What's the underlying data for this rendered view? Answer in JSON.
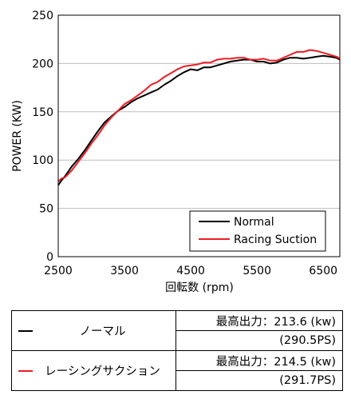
{
  "chart_data": {
    "type": "line",
    "xlabel": "回転数 (rpm)",
    "ylabel": "POWER (KW)",
    "xlim": [
      2500,
      6750
    ],
    "ylim": [
      0,
      250
    ],
    "x_ticks": [
      2500,
      3500,
      4500,
      5500,
      6500
    ],
    "y_ticks": [
      0,
      50,
      100,
      150,
      200,
      250
    ],
    "grid": "horizontal",
    "legend_position": "bottom-right",
    "series": [
      {
        "name": "Normal",
        "color": "#000000",
        "x": [
          2500,
          2550,
          2600,
          2700,
          2800,
          2900,
          3000,
          3100,
          3200,
          3300,
          3400,
          3500,
          3600,
          3700,
          3800,
          3900,
          4000,
          4100,
          4200,
          4300,
          4400,
          4500,
          4600,
          4700,
          4800,
          4900,
          5000,
          5100,
          5200,
          5300,
          5400,
          5500,
          5600,
          5700,
          5800,
          5900,
          6000,
          6100,
          6200,
          6300,
          6400,
          6500,
          6600,
          6700,
          6750
        ],
        "values": [
          74,
          79,
          83,
          93,
          101,
          110,
          120,
          130,
          139,
          145,
          151,
          155,
          160,
          164,
          167,
          170,
          173,
          178,
          182,
          187,
          191,
          194,
          193,
          196,
          196,
          198,
          200,
          202,
          203,
          204,
          204,
          202,
          202,
          200,
          201,
          204,
          206,
          206,
          205,
          206,
          207,
          208,
          207,
          206,
          204
        ]
      },
      {
        "name": "Racing Suction",
        "color": "#ee1c25",
        "x": [
          2500,
          2550,
          2600,
          2700,
          2800,
          2900,
          3000,
          3100,
          3200,
          3300,
          3400,
          3500,
          3600,
          3700,
          3800,
          3900,
          4000,
          4100,
          4200,
          4300,
          4400,
          4500,
          4600,
          4700,
          4800,
          4900,
          5000,
          5100,
          5200,
          5300,
          5400,
          5500,
          5600,
          5700,
          5800,
          5900,
          6000,
          6100,
          6200,
          6300,
          6400,
          6500,
          6600,
          6700,
          6750
        ],
        "values": [
          78,
          81,
          82,
          89,
          98,
          107,
          117,
          126,
          136,
          144,
          151,
          158,
          162,
          167,
          172,
          178,
          181,
          186,
          190,
          194,
          197,
          198,
          199,
          201,
          201,
          204,
          205,
          205,
          206,
          206,
          204,
          204,
          205,
          203,
          203,
          206,
          209,
          212,
          212,
          214,
          213,
          211,
          209,
          207,
          205
        ]
      }
    ]
  },
  "legend": {
    "normal_label": "Normal",
    "racing_label": "Racing Suction"
  },
  "spec_table": {
    "rows": [
      {
        "name": "ノーマル",
        "color": "#000000",
        "peak": "最高出力：213.6 (kw)",
        "ps": "(290.5PS)"
      },
      {
        "name": "レーシングサクション",
        "color": "#ee1c25",
        "peak": "最高出力：214.5 (kw)",
        "ps": "(291.7PS)"
      }
    ]
  }
}
